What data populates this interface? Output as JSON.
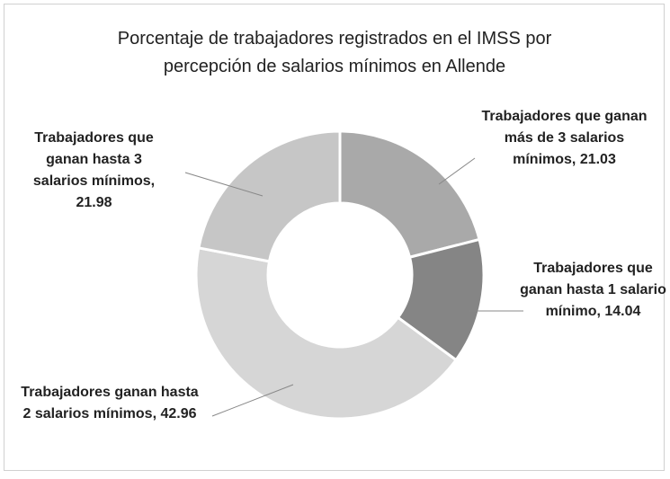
{
  "chart_data": {
    "type": "donut",
    "title": "Porcentaje de trabajadores registrados en el IMSS por percepción de salarios mínimos en Allende",
    "categories": [
      "Trabajadores que ganan más de 3 salarios mínimos",
      "Trabajadores que ganan hasta 1 salario mínimo",
      "Trabajadores ganan hasta 2 salarios mínimos",
      "Trabajadores que ganan hasta 3 salarios mínimos"
    ],
    "values": [
      21.03,
      14.04,
      42.96,
      21.98
    ],
    "colors": [
      "#a9a9a9",
      "#858585",
      "#d6d6d6",
      "#c6c6c6"
    ],
    "label_separator": ", "
  }
}
